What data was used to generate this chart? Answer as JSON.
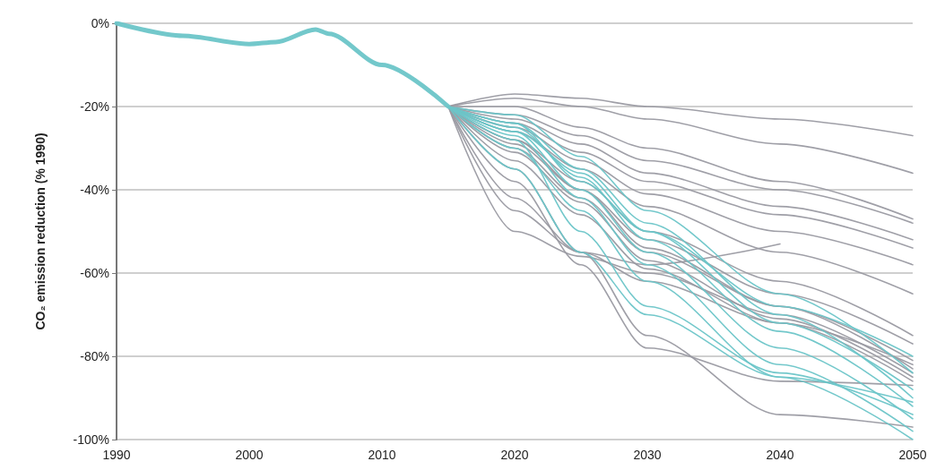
{
  "chart_data": {
    "type": "line",
    "ylabel": "CO₂ emission reduction (% 1990)",
    "xlim": [
      1990,
      2050
    ],
    "xticks": [
      1990,
      2000,
      2010,
      2020,
      2030,
      2040,
      2050
    ],
    "ylim": [
      -100,
      0
    ],
    "yticks": [
      {
        "value": -100,
        "label": "-100%"
      },
      {
        "value": -80,
        "label": "-80%"
      },
      {
        "value": -60,
        "label": "-60%"
      },
      {
        "value": -40,
        "label": "-40%"
      },
      {
        "value": -20,
        "label": "-20%"
      },
      {
        "value": 0,
        "label": "0%"
      }
    ],
    "grid": "y",
    "marker": "none",
    "line_style": "solid",
    "series": [
      {
        "color": "#9a9aa2",
        "x": [
          2015,
          2020,
          2025,
          2030,
          2040,
          2050
        ],
        "values": [
          -20,
          -17,
          -18,
          -20,
          -23,
          -27
        ]
      },
      {
        "color": "#9a9aa2",
        "x": [
          2015,
          2020,
          2025,
          2030,
          2040,
          2050
        ],
        "values": [
          -20,
          -18,
          -20,
          -23,
          -29,
          -36
        ]
      },
      {
        "color": "#9a9aa2",
        "x": [
          2015,
          2020,
          2025,
          2030,
          2040,
          2050
        ],
        "values": [
          -20,
          -20,
          -25,
          -30,
          -38,
          -47
        ]
      },
      {
        "color": "#9a9aa2",
        "x": [
          2015,
          2020,
          2025,
          2030,
          2040,
          2050
        ],
        "values": [
          -20,
          -22,
          -27,
          -33,
          -40,
          -48
        ]
      },
      {
        "color": "#9a9aa2",
        "x": [
          2015,
          2020,
          2025,
          2030,
          2040,
          2050
        ],
        "values": [
          -20,
          -23,
          -29,
          -36,
          -44,
          -52
        ]
      },
      {
        "color": "#9a9aa2",
        "x": [
          2015,
          2020,
          2025,
          2030,
          2040,
          2050
        ],
        "values": [
          -20,
          -24,
          -31,
          -38,
          -46,
          -54
        ]
      },
      {
        "color": "#9a9aa2",
        "x": [
          2015,
          2020,
          2025,
          2030,
          2040,
          2050
        ],
        "values": [
          -20,
          -25,
          -33,
          -41,
          -50,
          -58
        ]
      },
      {
        "color": "#9a9aa2",
        "x": [
          2015,
          2020,
          2025,
          2030,
          2040,
          2050
        ],
        "values": [
          -20,
          -26,
          -35,
          -44,
          -55,
          -65
        ]
      },
      {
        "color": "#9a9aa2",
        "x": [
          2015,
          2020,
          2025,
          2030,
          2040,
          2050
        ],
        "values": [
          -20,
          -28,
          -38,
          -50,
          -62,
          -75
        ]
      },
      {
        "color": "#9a9aa2",
        "x": [
          2015,
          2020,
          2025,
          2030,
          2040,
          2050
        ],
        "values": [
          -20,
          -29,
          -40,
          -52,
          -65,
          -77
        ]
      },
      {
        "color": "#9a9aa2",
        "x": [
          2015,
          2020,
          2025,
          2030,
          2040,
          2050
        ],
        "values": [
          -20,
          -30,
          -42,
          -55,
          -68,
          -81
        ]
      },
      {
        "color": "#9a9aa2",
        "x": [
          2015,
          2020,
          2025,
          2030,
          2040,
          2050
        ],
        "values": [
          -20,
          -28,
          -40,
          -54,
          -68,
          -83
        ]
      },
      {
        "color": "#9a9aa2",
        "x": [
          2015,
          2020,
          2025,
          2030,
          2040,
          2050
        ],
        "values": [
          -20,
          -31,
          -43,
          -57,
          -71,
          -85
        ]
      },
      {
        "color": "#9a9aa2",
        "x": [
          2015,
          2020,
          2025,
          2030,
          2040,
          2050
        ],
        "values": [
          -20,
          -33,
          -46,
          -59,
          -72,
          -86
        ]
      },
      {
        "color": "#9a9aa2",
        "x": [
          2015,
          2020,
          2025,
          2030,
          2040,
          2050
        ],
        "values": [
          -20,
          -50,
          -56,
          -60,
          -70,
          -84
        ]
      },
      {
        "color": "#9a9aa2",
        "x": [
          2015,
          2020,
          2025,
          2030,
          2040,
          2050
        ],
        "values": [
          -20,
          -45,
          -55,
          -62,
          -72,
          -82
        ]
      },
      {
        "color": "#9a9aa2",
        "x": [
          2015,
          2020,
          2025,
          2030,
          2040,
          2050
        ],
        "values": [
          -20,
          -38,
          -58,
          -78,
          -86,
          -87
        ]
      },
      {
        "color": "#9a9aa2",
        "x": [
          2015,
          2020,
          2025,
          2030,
          2040,
          2050
        ],
        "values": [
          -20,
          -35,
          -55,
          -75,
          -94,
          -97
        ]
      },
      {
        "color": "#9a9aa2",
        "x": [
          2015,
          2020,
          2025,
          2030,
          2040
        ],
        "values": [
          -20,
          -42,
          -55,
          -58,
          -53
        ]
      },
      {
        "color": "#6cc5c8",
        "x": [
          2015,
          2020,
          2025,
          2030,
          2040,
          2050
        ],
        "values": [
          -20,
          -24,
          -35,
          -48,
          -70,
          -90
        ]
      },
      {
        "color": "#6cc5c8",
        "x": [
          2015,
          2020,
          2025,
          2030,
          2040,
          2050
        ],
        "values": [
          -20,
          -25,
          -37,
          -52,
          -74,
          -92
        ]
      },
      {
        "color": "#6cc5c8",
        "x": [
          2015,
          2020,
          2025,
          2030,
          2040,
          2050
        ],
        "values": [
          -20,
          -26,
          -40,
          -55,
          -78,
          -95
        ]
      },
      {
        "color": "#6cc5c8",
        "x": [
          2015,
          2020,
          2025,
          2030,
          2040,
          2050
        ],
        "values": [
          -20,
          -27,
          -42,
          -58,
          -82,
          -98
        ]
      },
      {
        "color": "#6cc5c8",
        "x": [
          2015,
          2020,
          2025,
          2030,
          2040,
          2050
        ],
        "values": [
          -20,
          -30,
          -45,
          -62,
          -85,
          -100
        ]
      },
      {
        "color": "#6cc5c8",
        "x": [
          2015,
          2020,
          2025,
          2030,
          2040,
          2050
        ],
        "values": [
          -20,
          -22,
          -32,
          -45,
          -65,
          -84
        ]
      },
      {
        "color": "#6cc5c8",
        "x": [
          2015,
          2020,
          2025,
          2030,
          2040,
          2050
        ],
        "values": [
          -20,
          -35,
          -55,
          -70,
          -85,
          -91
        ]
      },
      {
        "color": "#6cc5c8",
        "x": [
          2015,
          2020,
          2025,
          2030,
          2040,
          2050
        ],
        "values": [
          -20,
          -28,
          -50,
          -68,
          -84,
          -94
        ]
      },
      {
        "color": "#6cc5c8",
        "x": [
          2015,
          2020,
          2025,
          2030,
          2040,
          2050
        ],
        "values": [
          -20,
          -24,
          -38,
          -50,
          -72,
          -88
        ]
      },
      {
        "color": "#6cc5c8",
        "x": [
          2015,
          2020,
          2025,
          2030,
          2040,
          2050
        ],
        "values": [
          -20,
          -26,
          -36,
          -50,
          -68,
          -80
        ]
      },
      {
        "color": "#6cc5c8",
        "x": [
          1990,
          1995,
          2000,
          2002,
          2005,
          2006,
          2010,
          2015
        ],
        "values": [
          0,
          -3,
          -5,
          -4.5,
          -1.5,
          -2.5,
          -10,
          -20
        ]
      }
    ]
  }
}
